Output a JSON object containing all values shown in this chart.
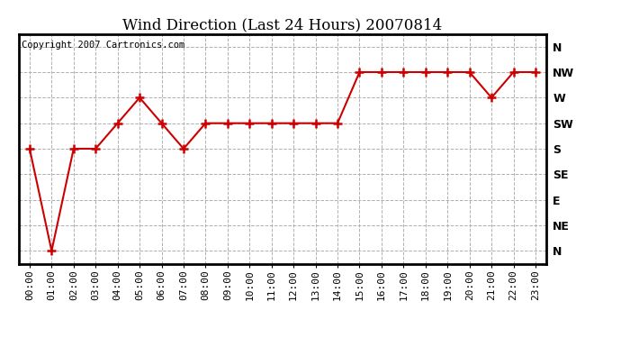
{
  "title": "Wind Direction (Last 24 Hours) 20070814",
  "copyright": "Copyright 2007 Cartronics.com",
  "background_color": "#ffffff",
  "plot_bg_color": "#ffffff",
  "grid_color": "#b0b0b0",
  "line_color": "#cc0000",
  "marker_color": "#cc0000",
  "x_labels": [
    "00:00",
    "01:00",
    "02:00",
    "03:00",
    "04:00",
    "05:00",
    "06:00",
    "07:00",
    "08:00",
    "09:00",
    "10:00",
    "11:00",
    "12:00",
    "13:00",
    "14:00",
    "15:00",
    "16:00",
    "17:00",
    "18:00",
    "19:00",
    "20:00",
    "21:00",
    "22:00",
    "23:00"
  ],
  "y_labels": [
    "N",
    "NE",
    "E",
    "SE",
    "S",
    "SW",
    "W",
    "NW",
    "N"
  ],
  "data_points": [
    4,
    0,
    4,
    4,
    5,
    6,
    5,
    4,
    5,
    5,
    5,
    5,
    5,
    5,
    5,
    7,
    7,
    7,
    7,
    7,
    7,
    6,
    7,
    7
  ],
  "ylim": [
    -0.5,
    8.5
  ],
  "xlim": [
    -0.5,
    23.5
  ],
  "title_fontsize": 12,
  "copyright_fontsize": 7.5,
  "tick_fontsize": 8,
  "ytick_fontsize": 9
}
